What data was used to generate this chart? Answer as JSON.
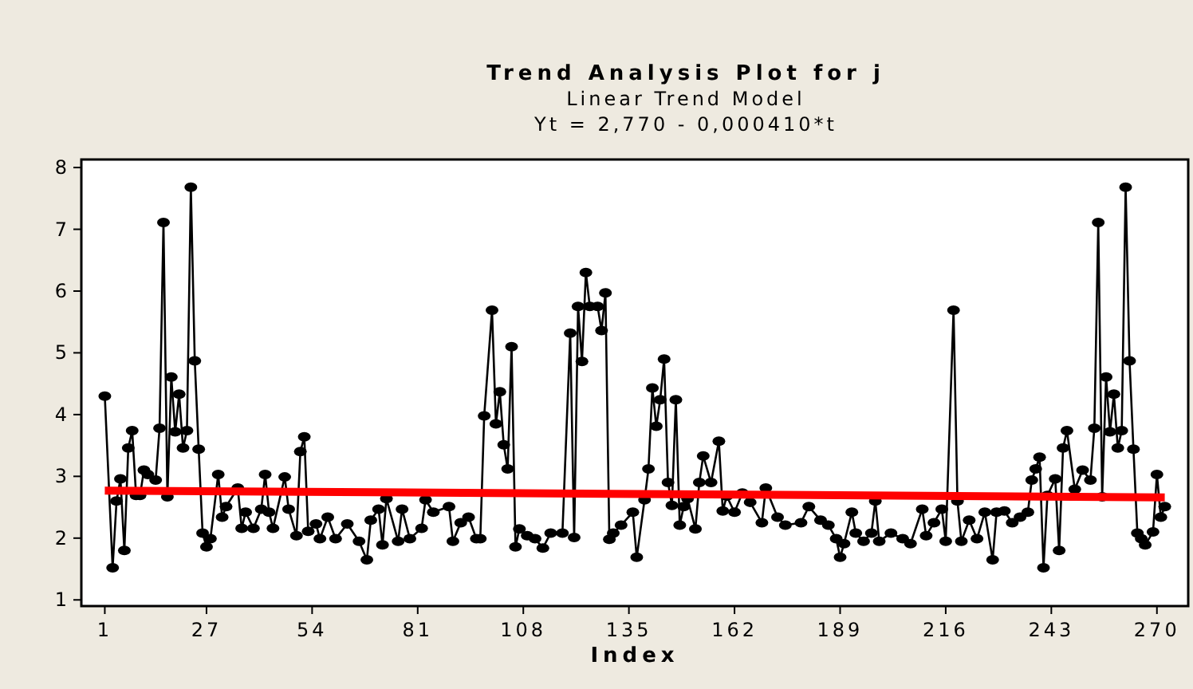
{
  "chart_data": {
    "type": "line",
    "title": "Trend Analysis Plot for j",
    "subtitle": "Linear Trend Model",
    "annotations": [
      "Yt = 2,770 - 0,000410*t"
    ],
    "xlabel": "Index",
    "xlim": [
      -5,
      278
    ],
    "ylim": [
      0.9,
      8.13
    ],
    "xticks": [
      1,
      27,
      54,
      81,
      108,
      135,
      162,
      189,
      216,
      243,
      270
    ],
    "yticks": [
      1,
      2,
      3,
      4,
      5,
      6,
      7,
      8
    ],
    "series": [
      {
        "color": "#000000",
        "marker": "circle",
        "x": [
          1,
          3,
          4,
          5,
          6,
          7,
          8,
          9,
          10,
          11,
          12,
          14,
          15,
          16,
          17,
          18,
          19,
          20,
          21,
          22,
          23,
          24,
          25,
          26,
          27,
          28,
          30,
          31,
          32,
          35,
          36,
          37,
          39,
          41,
          42,
          43,
          44,
          47,
          48,
          50,
          51,
          52,
          53,
          55,
          56,
          58,
          60,
          63,
          66,
          68,
          69,
          71,
          72,
          73,
          76,
          77,
          79,
          82,
          83,
          85,
          89,
          90,
          92,
          94,
          96,
          97,
          98,
          100,
          101,
          102,
          103,
          104,
          105,
          106,
          107,
          109,
          111,
          113,
          115,
          118,
          120,
          121,
          122,
          123,
          124,
          125,
          127,
          128,
          129,
          130,
          131,
          133,
          136,
          137,
          139,
          140,
          141,
          142,
          143,
          144,
          145,
          146,
          147,
          148,
          149,
          150,
          152,
          153,
          154,
          156,
          158,
          159,
          160,
          162,
          164,
          166,
          169,
          170,
          173,
          175,
          179,
          181,
          184,
          186,
          188,
          189,
          190,
          192,
          193,
          195,
          197,
          198,
          199,
          202,
          205,
          207,
          210,
          211,
          213,
          215,
          216,
          218,
          219,
          220,
          222,
          224,
          226,
          228,
          229,
          231,
          233,
          235,
          237,
          238,
          239,
          240,
          241,
          242,
          244,
          245,
          246,
          247,
          249,
          251,
          253,
          254,
          255,
          256,
          257,
          258,
          259,
          260,
          261,
          262,
          263,
          264,
          265,
          266,
          267,
          269,
          270,
          271,
          272
        ],
        "values": [
          4.3,
          1.52,
          2.6,
          2.96,
          1.8,
          3.46,
          3.74,
          2.69,
          2.69,
          3.1,
          3.03,
          2.94,
          3.78,
          7.11,
          2.67,
          4.61,
          3.72,
          4.33,
          3.46,
          3.74,
          7.68,
          4.87,
          3.44,
          2.08,
          1.86,
          1.99,
          3.03,
          2.34,
          2.51,
          2.81,
          2.16,
          2.42,
          2.16,
          2.47,
          3.03,
          2.42,
          2.16,
          2.99,
          2.47,
          2.04,
          3.4,
          3.64,
          2.11,
          2.23,
          1.99,
          2.34,
          1.99,
          2.23,
          1.95,
          1.65,
          2.29,
          2.47,
          1.89,
          2.64,
          1.95,
          2.47,
          1.99,
          2.16,
          2.62,
          2.42,
          2.51,
          1.95,
          2.25,
          2.34,
          1.99,
          1.99,
          3.98,
          5.69,
          3.85,
          4.37,
          3.51,
          3.12,
          5.1,
          1.86,
          2.15,
          2.04,
          1.99,
          1.84,
          2.08,
          2.08,
          5.32,
          2.01,
          5.75,
          4.86,
          6.3,
          5.75,
          5.75,
          5.36,
          5.97,
          1.98,
          2.08,
          2.21,
          2.42,
          1.69,
          2.62,
          3.12,
          4.43,
          3.81,
          4.24,
          4.9,
          2.9,
          2.53,
          4.24,
          2.21,
          2.51,
          2.64,
          2.15,
          2.9,
          3.33,
          2.9,
          3.57,
          2.44,
          2.68,
          2.42,
          2.73,
          2.58,
          2.25,
          2.81,
          2.34,
          2.21,
          2.25,
          2.51,
          2.29,
          2.21,
          1.99,
          1.69,
          1.91,
          2.42,
          2.08,
          1.95,
          2.08,
          2.6,
          1.95,
          2.08,
          1.99,
          1.91,
          2.47,
          2.04,
          2.25,
          2.47,
          1.95,
          5.69,
          2.6,
          1.95,
          2.29,
          1.99,
          2.42,
          1.65,
          2.42,
          2.44,
          2.25,
          2.34,
          2.42,
          2.94,
          3.12,
          3.31,
          1.52,
          2.69,
          2.96,
          1.8,
          3.46,
          3.74,
          2.79,
          3.1,
          2.94,
          3.78,
          7.11,
          2.67,
          4.61,
          3.72,
          4.33,
          3.46,
          3.74,
          7.68,
          4.87,
          3.44,
          2.08,
          1.99,
          1.89,
          2.1,
          3.03,
          2.34,
          2.51
        ]
      },
      {
        "type": "line",
        "color": "#ff0000",
        "marker": "none",
        "x": [
          1,
          272
        ],
        "values": [
          2.77,
          2.66
        ]
      }
    ]
  }
}
